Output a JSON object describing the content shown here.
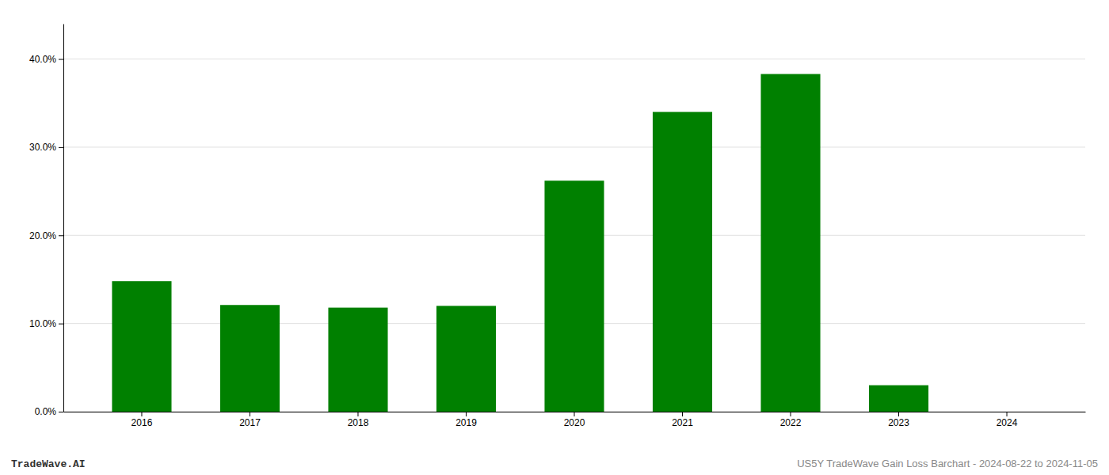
{
  "chart_data": {
    "type": "bar",
    "categories": [
      "2016",
      "2017",
      "2018",
      "2019",
      "2020",
      "2021",
      "2022",
      "2023",
      "2024"
    ],
    "values": [
      0.148,
      0.121,
      0.118,
      0.12,
      0.262,
      0.34,
      0.383,
      0.03,
      0.0
    ],
    "color": "#008000",
    "ylim": [
      0,
      0.44
    ],
    "yticks": [
      {
        "value": 0.0,
        "label": "0.0%"
      },
      {
        "value": 0.1,
        "label": "10.0%"
      },
      {
        "value": 0.2,
        "label": "20.0%"
      },
      {
        "value": 0.3,
        "label": "30.0%"
      },
      {
        "value": 0.4,
        "label": "40.0%"
      }
    ],
    "grid": true,
    "annotations": [
      "TradeWave.AI",
      "US5Y TradeWave Gain Loss Barchart - 2024-08-22 to 2024-11-05"
    ]
  }
}
